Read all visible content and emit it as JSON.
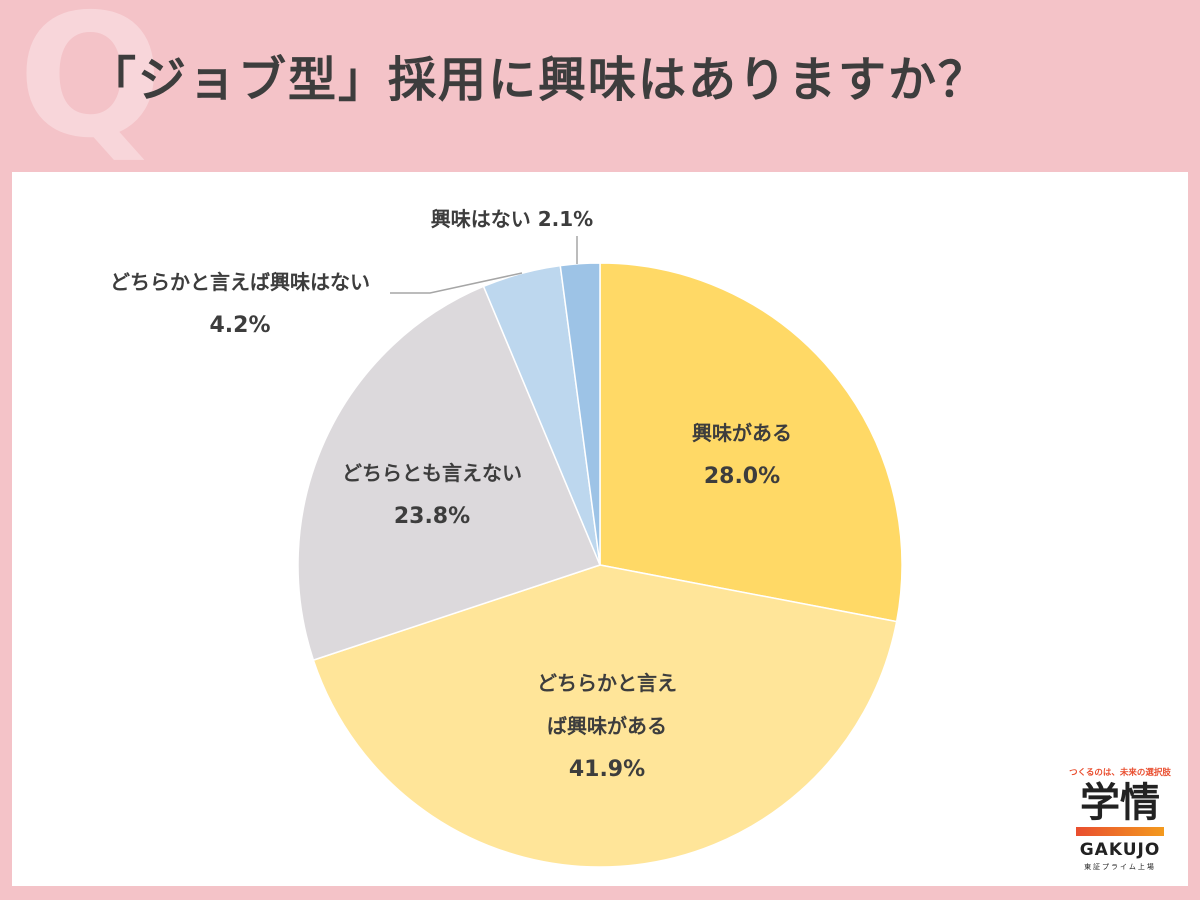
{
  "header": {
    "q_mark": "Q",
    "title": "「ジョブ型」採用に興味はありますか？"
  },
  "chart_data": {
    "type": "pie",
    "title": "",
    "start_angle_deg": 0,
    "direction": "clockwise",
    "slices": [
      {
        "name_lines": [
          "興味がある"
        ],
        "value": 28.0,
        "label": "28.0%",
        "color": "#ffd966"
      },
      {
        "name_lines": [
          "どちらかと言え",
          "ば興味がある"
        ],
        "value": 41.9,
        "label": "41.9%",
        "color": "#ffe599"
      },
      {
        "name_lines": [
          "どちらとも言えない"
        ],
        "value": 23.8,
        "label": "23.8%",
        "color": "#dcd9dc"
      },
      {
        "name_lines": [
          "どちらかと言えば興味はない"
        ],
        "value": 4.2,
        "label": "4.2%",
        "color": "#bdd7ee"
      },
      {
        "name_lines": [
          "興味はない 2.1%"
        ],
        "value": 2.1,
        "label": "",
        "color": "#9dc3e6"
      }
    ],
    "leader_line_color": "#a6a6a6"
  },
  "logo": {
    "tagline": "つくるのは、未来の選択肢",
    "name_jp": "学情",
    "name_en": "GAKUJO",
    "subtitle": "東証プライム上場"
  }
}
